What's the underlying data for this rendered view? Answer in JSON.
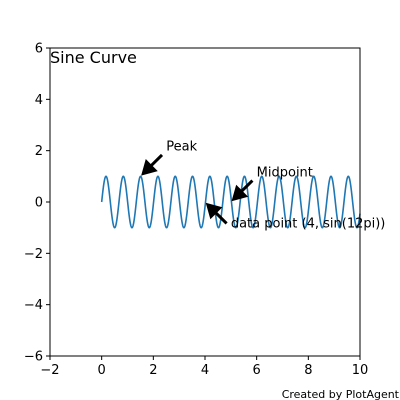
{
  "chart_data": {
    "type": "line",
    "title": "Sine Curve",
    "xlabel": "",
    "ylabel": "",
    "xlim": [
      -2,
      10
    ],
    "ylim": [
      -6,
      6
    ],
    "x_ticks": [
      -2,
      0,
      2,
      4,
      6,
      8,
      10
    ],
    "y_ticks": [
      -6,
      -4,
      -2,
      0,
      2,
      4,
      6
    ],
    "x_tick_labels": [
      "−2",
      "0",
      "2",
      "4",
      "6",
      "8",
      "10"
    ],
    "y_tick_labels": [
      "−6",
      "−4",
      "−2",
      "0",
      "2",
      "4",
      "6"
    ],
    "grid": false,
    "series": [
      {
        "function": "sin(2*pi*x/0.67)",
        "x_range": [
          0,
          10
        ],
        "amplitude": 1,
        "period": 0.67,
        "color": "#1f77b4"
      }
    ],
    "annotations": [
      {
        "text": "Peak",
        "xy": [
          1.5,
          1
        ],
        "xytext": [
          2.5,
          2
        ]
      },
      {
        "text": "Midpoint",
        "xy": [
          5,
          0
        ],
        "xytext": [
          6,
          1
        ]
      },
      {
        "text": "data point (4, sin(12pi))",
        "xy": [
          4,
          0
        ],
        "xytext": [
          5,
          -1
        ]
      }
    ],
    "footer": "Created by PlotAgent"
  }
}
